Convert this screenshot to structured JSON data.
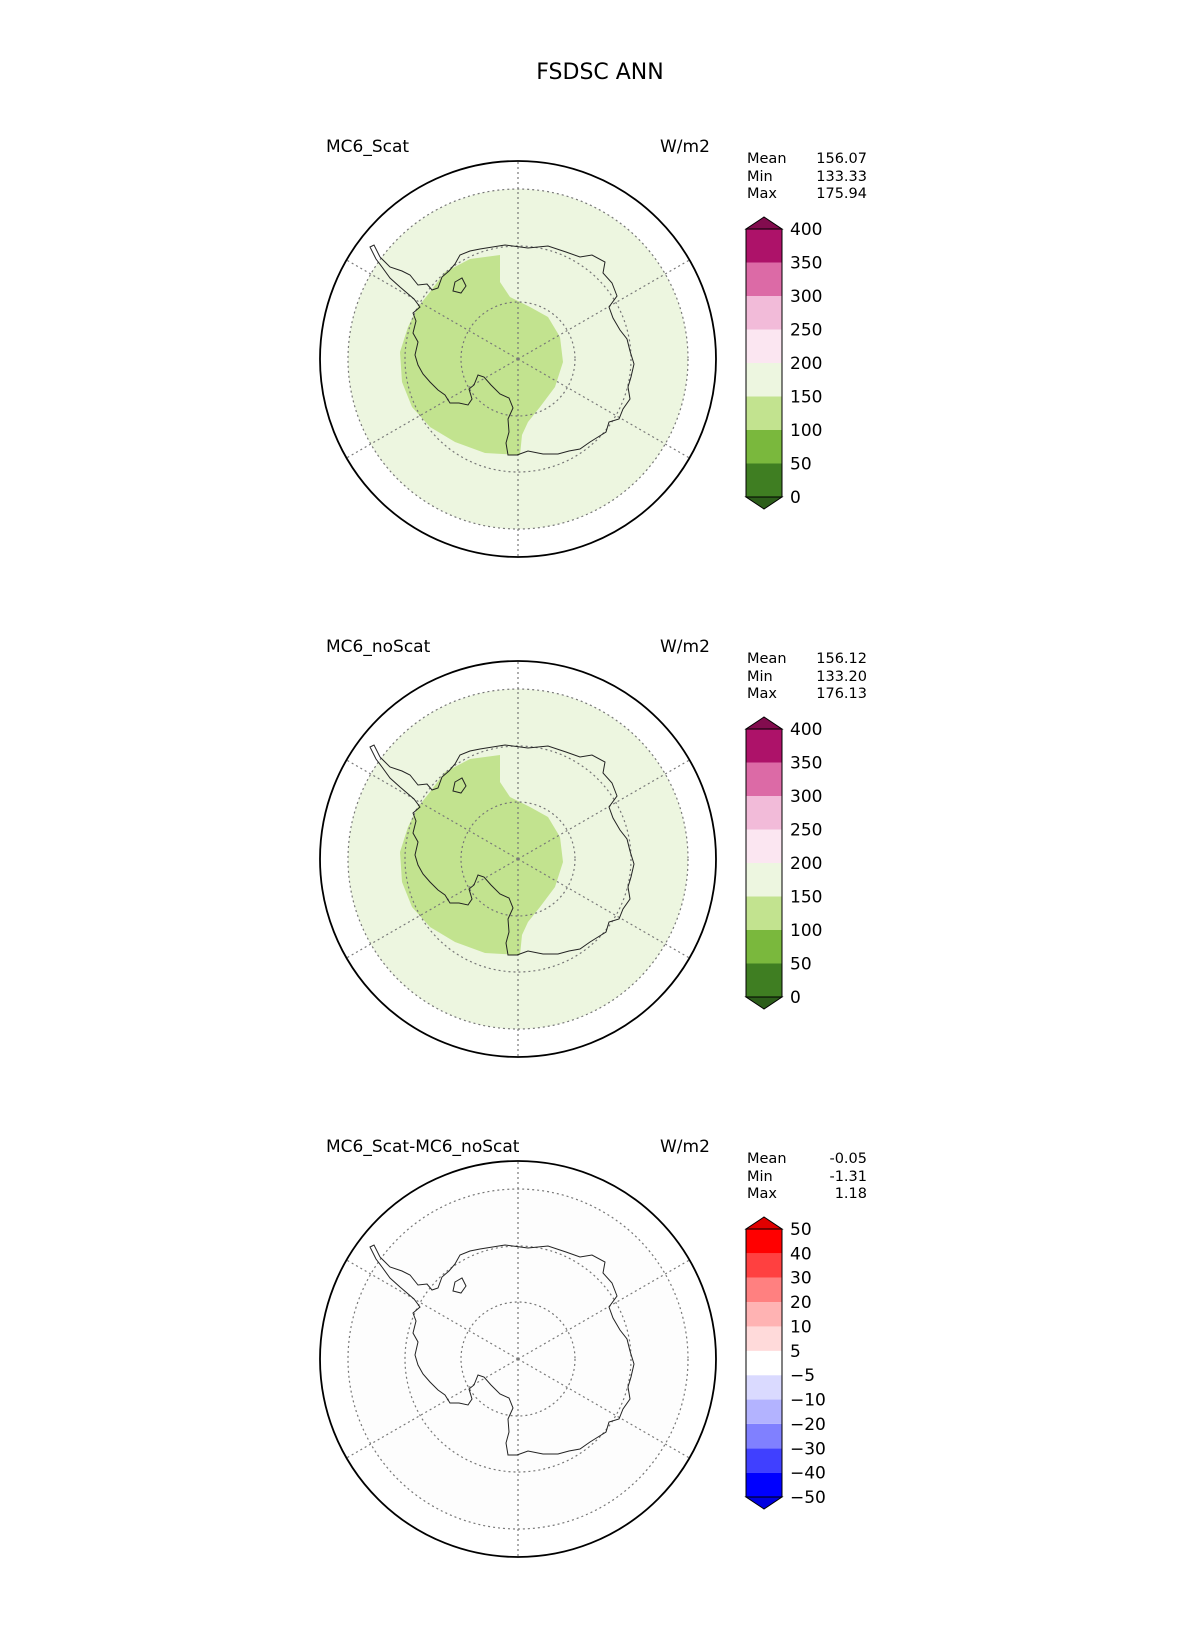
{
  "title": "FSDSC ANN",
  "panels": [
    {
      "title": "MC6_Scat",
      "units": "W/m2",
      "stats": {
        "mean_label": "Mean",
        "mean": "156.07",
        "min_label": "Min",
        "min": "133.33",
        "max_label": "Max",
        "max": "175.94"
      },
      "fill": {
        "outer": "#edf6e0",
        "inner": "#c2e38f"
      },
      "colorbar": {
        "ticks": [
          "0",
          "50",
          "100",
          "150",
          "200",
          "250",
          "300",
          "350",
          "400"
        ],
        "colors": [
          "#2c5e1a",
          "#3f7e22",
          "#7ab83d",
          "#c2e38f",
          "#edf6e0",
          "#fbe6f1",
          "#f2bbd9",
          "#dc6aa6",
          "#ad1269",
          "#820c4e"
        ]
      }
    },
    {
      "title": "MC6_noScat",
      "units": "W/m2",
      "stats": {
        "mean_label": "Mean",
        "mean": "156.12",
        "min_label": "Min",
        "min": "133.20",
        "max_label": "Max",
        "max": "176.13"
      },
      "fill": {
        "outer": "#edf6e0",
        "inner": "#c2e38f"
      },
      "colorbar": {
        "ticks": [
          "0",
          "50",
          "100",
          "150",
          "200",
          "250",
          "300",
          "350",
          "400"
        ],
        "colors": [
          "#2c5e1a",
          "#3f7e22",
          "#7ab83d",
          "#c2e38f",
          "#edf6e0",
          "#fbe6f1",
          "#f2bbd9",
          "#dc6aa6",
          "#ad1269",
          "#820c4e"
        ]
      }
    },
    {
      "title": "MC6_Scat-MC6_noScat",
      "units": "W/m2",
      "stats": {
        "mean_label": "Mean",
        "mean": "-0.05",
        "min_label": "Min",
        "min": "-1.31",
        "max_label": "Max",
        "max": "1.18"
      },
      "fill": {
        "outer": "#fdfdfd",
        "inner": "#fdfdfd"
      },
      "colorbar": {
        "ticks": [
          "−50",
          "−40",
          "−30",
          "−20",
          "−10",
          "−5",
          "5",
          "10",
          "20",
          "30",
          "40",
          "50"
        ],
        "colors": [
          "#0000e0",
          "#0000ff",
          "#4040ff",
          "#8080ff",
          "#b3b3ff",
          "#dadaff",
          "#ffffff",
          "#ffdada",
          "#ffb3b3",
          "#ff8080",
          "#ff4040",
          "#ff0000",
          "#e00000"
        ]
      }
    }
  ]
}
